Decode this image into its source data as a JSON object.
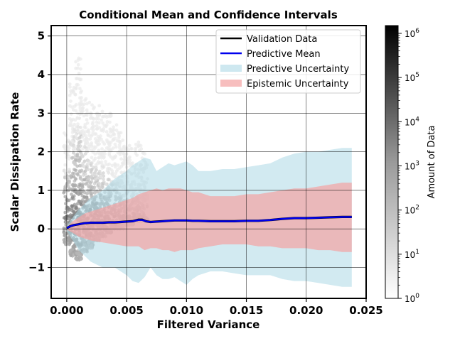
{
  "chart_data": {
    "type": "line",
    "title": "Conditional Mean and Confidence Intervals",
    "xlabel": "Filtered Variance",
    "ylabel": "Scalar Dissipation Rate",
    "xlim": [
      -0.0013,
      0.025
    ],
    "ylim": [
      -1.8,
      5.27
    ],
    "xticks": [
      0.0,
      0.005,
      0.01,
      0.015,
      0.02,
      0.025
    ],
    "xtick_labels": [
      "0.000",
      "0.005",
      "0.010",
      "0.015",
      "0.020",
      "0.025"
    ],
    "yticks": [
      -1,
      0,
      1,
      2,
      3,
      4,
      5
    ],
    "ytick_labels": [
      "−1",
      "0",
      "1",
      "2",
      "3",
      "4",
      "5"
    ],
    "grid": true,
    "legend_position": "top-right",
    "legend": {
      "validation": "Validation Data",
      "mean": "Predictive Mean",
      "predictive": "Predictive Uncertainty",
      "epistemic": "Epistemic Uncertainty"
    },
    "colors": {
      "validation": "#000000",
      "mean": "#0000ee",
      "predictive": "#add8e6",
      "epistemic": "#f4a3a3"
    },
    "validation": {
      "x": [
        0.0,
        0.0003,
        0.0006,
        0.001,
        0.0015,
        0.002,
        0.0025,
        0.003,
        0.0035,
        0.004,
        0.0045,
        0.005,
        0.0055,
        0.006,
        0.0063,
        0.0066,
        0.007,
        0.0075,
        0.008,
        0.0085,
        0.009,
        0.0095,
        0.01,
        0.0105,
        0.011,
        0.012,
        0.013,
        0.014,
        0.015,
        0.016,
        0.017,
        0.018,
        0.019,
        0.02,
        0.021,
        0.022,
        0.023,
        0.0238
      ],
      "y": [
        0.02,
        0.07,
        0.1,
        0.12,
        0.15,
        0.16,
        0.16,
        0.16,
        0.17,
        0.17,
        0.18,
        0.19,
        0.2,
        0.24,
        0.24,
        0.2,
        0.18,
        0.19,
        0.2,
        0.21,
        0.22,
        0.22,
        0.22,
        0.21,
        0.21,
        0.2,
        0.2,
        0.2,
        0.21,
        0.21,
        0.23,
        0.26,
        0.28,
        0.28,
        0.29,
        0.3,
        0.31,
        0.31
      ]
    },
    "mean": {
      "x": [
        0.0,
        0.0003,
        0.0006,
        0.001,
        0.0015,
        0.002,
        0.0025,
        0.003,
        0.0035,
        0.004,
        0.0045,
        0.005,
        0.0055,
        0.006,
        0.0063,
        0.0066,
        0.007,
        0.0075,
        0.008,
        0.0085,
        0.009,
        0.0095,
        0.01,
        0.0105,
        0.011,
        0.012,
        0.013,
        0.014,
        0.015,
        0.016,
        0.017,
        0.018,
        0.019,
        0.02,
        0.021,
        0.022,
        0.023,
        0.0238
      ],
      "y": [
        0.02,
        0.07,
        0.1,
        0.12,
        0.15,
        0.16,
        0.16,
        0.16,
        0.17,
        0.17,
        0.18,
        0.19,
        0.2,
        0.23,
        0.23,
        0.2,
        0.18,
        0.19,
        0.2,
        0.21,
        0.22,
        0.22,
        0.22,
        0.21,
        0.21,
        0.2,
        0.2,
        0.2,
        0.21,
        0.21,
        0.23,
        0.26,
        0.28,
        0.28,
        0.29,
        0.3,
        0.31,
        0.31
      ]
    },
    "predictive_band": {
      "x": [
        0.0,
        0.0005,
        0.001,
        0.0015,
        0.002,
        0.003,
        0.004,
        0.005,
        0.0055,
        0.006,
        0.0065,
        0.007,
        0.0075,
        0.008,
        0.0085,
        0.009,
        0.0095,
        0.01,
        0.0105,
        0.011,
        0.012,
        0.013,
        0.014,
        0.015,
        0.016,
        0.017,
        0.018,
        0.019,
        0.02,
        0.021,
        0.022,
        0.023,
        0.0238
      ],
      "upper": [
        0.08,
        0.3,
        0.5,
        0.65,
        0.8,
        1.0,
        1.3,
        1.5,
        1.65,
        1.75,
        1.85,
        1.8,
        1.5,
        1.6,
        1.7,
        1.65,
        1.7,
        1.75,
        1.65,
        1.5,
        1.5,
        1.55,
        1.55,
        1.6,
        1.65,
        1.7,
        1.85,
        1.95,
        2.0,
        2.0,
        2.05,
        2.1,
        2.1
      ],
      "lower": [
        -0.05,
        -0.3,
        -0.55,
        -0.7,
        -0.85,
        -1.0,
        -1.0,
        -1.2,
        -1.35,
        -1.4,
        -1.25,
        -1.0,
        -1.2,
        -1.3,
        -1.3,
        -1.25,
        -1.35,
        -1.45,
        -1.3,
        -1.2,
        -1.1,
        -1.1,
        -1.15,
        -1.2,
        -1.2,
        -1.2,
        -1.3,
        -1.35,
        -1.35,
        -1.4,
        -1.45,
        -1.5,
        -1.5
      ]
    },
    "epistemic_band": {
      "x": [
        0.0,
        0.0005,
        0.001,
        0.0015,
        0.002,
        0.003,
        0.004,
        0.005,
        0.0055,
        0.006,
        0.0065,
        0.007,
        0.0075,
        0.008,
        0.0085,
        0.009,
        0.0095,
        0.01,
        0.0105,
        0.011,
        0.012,
        0.013,
        0.014,
        0.015,
        0.016,
        0.017,
        0.018,
        0.019,
        0.02,
        0.021,
        0.022,
        0.023,
        0.0238
      ],
      "upper": [
        0.05,
        0.2,
        0.3,
        0.4,
        0.45,
        0.55,
        0.65,
        0.75,
        0.8,
        0.9,
        0.95,
        1.0,
        1.05,
        1.0,
        1.05,
        1.05,
        1.05,
        1.0,
        0.95,
        0.95,
        0.85,
        0.85,
        0.85,
        0.9,
        0.9,
        0.95,
        1.0,
        1.05,
        1.05,
        1.1,
        1.15,
        1.2,
        1.2
      ],
      "lower": [
        -0.02,
        -0.1,
        -0.2,
        -0.25,
        -0.3,
        -0.35,
        -0.4,
        -0.45,
        -0.45,
        -0.45,
        -0.55,
        -0.5,
        -0.5,
        -0.55,
        -0.55,
        -0.6,
        -0.55,
        -0.55,
        -0.55,
        -0.5,
        -0.45,
        -0.4,
        -0.4,
        -0.4,
        -0.45,
        -0.45,
        -0.5,
        -0.5,
        -0.5,
        -0.55,
        -0.55,
        -0.6,
        -0.6
      ]
    },
    "density": {
      "x_centers": [
        0.0,
        0.0005,
        0.001,
        0.0015,
        0.002,
        0.0025,
        0.003,
        0.0035,
        0.004,
        0.0045,
        0.005,
        0.0055,
        0.006,
        0.0065
      ],
      "y_top": [
        2.5,
        3.8,
        4.5,
        3.5,
        3.3,
        3.2,
        3.1,
        3.0,
        2.7,
        2.5,
        2.2,
        2.1,
        2.3,
        2.0
      ],
      "y_bottom": [
        -0.4,
        -0.7,
        -0.8,
        -0.6,
        -0.5,
        -0.3,
        -0.2,
        -0.1,
        0.0,
        0.0,
        0.1,
        0.1,
        0.2,
        0.2
      ]
    },
    "colorbar": {
      "label": "Amount of Data",
      "scale": "log",
      "range": [
        1,
        1500000
      ],
      "ticks": [
        1,
        10,
        100,
        1000,
        10000,
        100000,
        1000000
      ],
      "tick_bases": [
        "10",
        "10",
        "10",
        "10",
        "10",
        "10",
        "10"
      ],
      "tick_exponents": [
        "0",
        "1",
        "2",
        "3",
        "4",
        "5",
        "6"
      ]
    }
  }
}
